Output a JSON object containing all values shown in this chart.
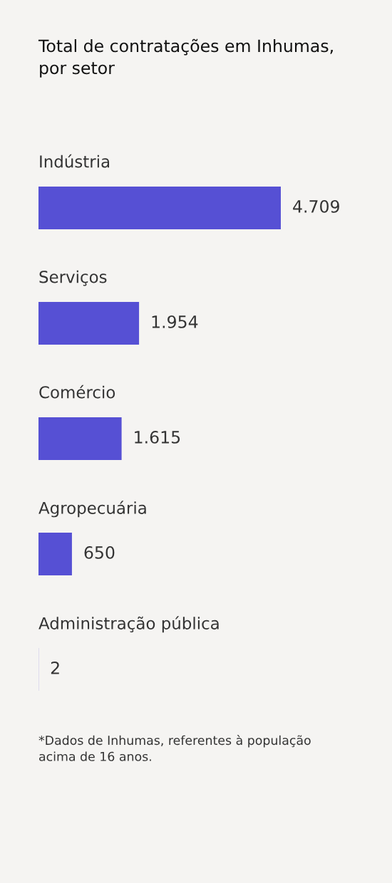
{
  "chart_data": {
    "type": "bar",
    "orientation": "horizontal",
    "title": "Total de contratações em Inhumas,\npor setor",
    "categories": [
      "Indústria",
      "Serviços",
      "Comércio",
      "Agropecuária",
      "Administração pública"
    ],
    "values": [
      4709,
      1954,
      1615,
      650,
      2
    ],
    "value_labels": [
      "4.709",
      "1.954",
      "1.615",
      "650",
      "2"
    ],
    "color": "#5650d4",
    "tick_labels": "y",
    "annotations": [
      "*Dados de Inhumas, referentes à população\nacima de 16 anos."
    ]
  }
}
